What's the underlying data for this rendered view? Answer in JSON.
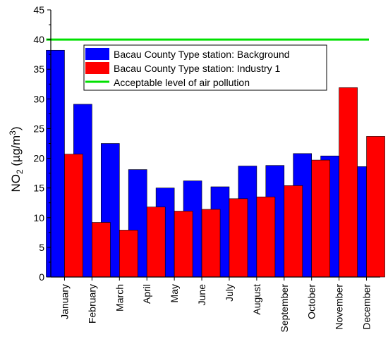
{
  "chart_data": {
    "type": "bar",
    "ylabel_base": "NO",
    "ylabel_sub": "2",
    "ylabel_unit_open": " (µg/m",
    "ylabel_unit_sup": "3",
    "ylabel_unit_close": ")",
    "xlabel": "",
    "ylim": [
      0,
      45
    ],
    "yticks": [
      0,
      5,
      10,
      15,
      20,
      25,
      30,
      35,
      40,
      45
    ],
    "grid": false,
    "legend_position": "top-left",
    "categories": [
      "January",
      "February",
      "March",
      "April",
      "May",
      "June",
      "July",
      "August",
      "September",
      "October",
      "November",
      "December"
    ],
    "series": [
      {
        "name": "Bacau County Type station: Background",
        "color": "#0000ff",
        "values": [
          38.2,
          29.1,
          22.5,
          18.1,
          15.0,
          16.2,
          15.2,
          18.7,
          18.8,
          20.8,
          20.4,
          18.6
        ]
      },
      {
        "name": "Bacau County Type station: Industry 1",
        "color": "#ff0000",
        "values": [
          20.7,
          9.2,
          7.9,
          11.8,
          11.1,
          11.4,
          13.2,
          13.5,
          15.4,
          19.7,
          31.9,
          23.7
        ]
      }
    ],
    "reference_line": {
      "name": "Acceptable level of air pollution",
      "value": 40,
      "color": "#00e000"
    }
  }
}
